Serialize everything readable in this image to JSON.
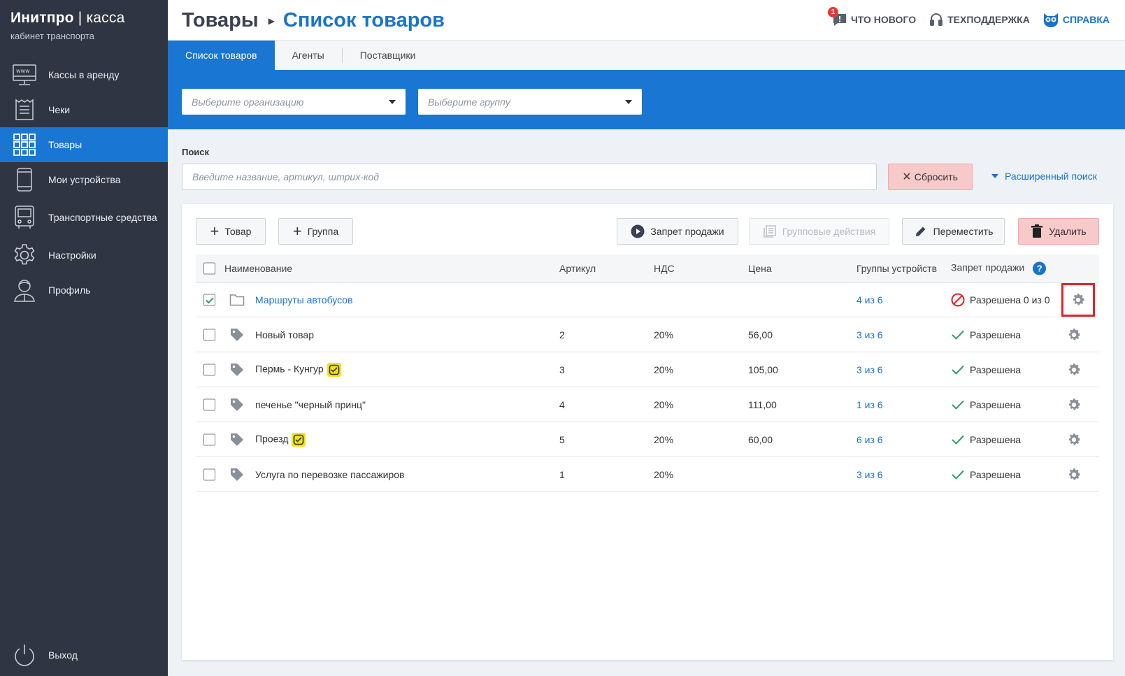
{
  "brand": {
    "title_bold": "Инитпро",
    "title_light": "| касса",
    "subtitle": "кабинет транспорта"
  },
  "sidebar": {
    "items": [
      {
        "label": "Кассы в аренду",
        "icon": "www-monitor-icon"
      },
      {
        "label": "Чеки",
        "icon": "receipt-icon"
      },
      {
        "label": "Товары",
        "icon": "grid-icon",
        "active": true
      },
      {
        "label": "Мои устройства",
        "icon": "phone-icon"
      },
      {
        "label": "Транспортные средства",
        "icon": "bus-icon"
      },
      {
        "label": "Настройки",
        "icon": "gear-icon"
      },
      {
        "label": "Профиль",
        "icon": "user-icon"
      }
    ],
    "logout": "Выход"
  },
  "header": {
    "crumb_parent": "Товары",
    "crumb_current": "Список товаров",
    "links": {
      "whats_new": "ЧТО НОВОГО",
      "whats_new_badge": "1",
      "support": "ТЕХПОДДЕРЖКА",
      "help": "СПРАВКА"
    }
  },
  "tabs": [
    "Список товаров",
    "Агенты",
    "Поставщики"
  ],
  "filters": {
    "org_placeholder": "Выберите организацию",
    "group_placeholder": "Выберите группу"
  },
  "search": {
    "label": "Поиск",
    "placeholder": "Введите название, артикул, штрих-код",
    "reset_label": "Сбросить",
    "advanced_label": "Расширенный поиск"
  },
  "toolbar": {
    "add_product": "Товар",
    "add_group": "Группа",
    "ban_sale": "Запрет продажи",
    "group_actions": "Групповые действия",
    "move": "Переместить",
    "delete": "Удалить"
  },
  "table": {
    "columns": {
      "name": "Наименование",
      "article": "Артикул",
      "vat": "НДС",
      "price": "Цена",
      "device_groups": "Группы устройств",
      "sale_ban": "Запрет продажи",
      "help": "?"
    },
    "rows": [
      {
        "type": "folder",
        "checked": true,
        "name": "Маршруты автобусов",
        "article": "",
        "vat": "",
        "price": "",
        "groups": "4 из 6",
        "status": "Разрешена 0 из 0",
        "status_kind": "partial",
        "badge": false,
        "highlight": true
      },
      {
        "type": "product",
        "checked": false,
        "name": "Новый товар",
        "article": "2",
        "vat": "20%",
        "price": "56,00",
        "groups": "3 из 6",
        "status": "Разрешена",
        "status_kind": "allowed",
        "badge": false
      },
      {
        "type": "product",
        "checked": false,
        "name": "Пермь - Кунгур",
        "article": "3",
        "vat": "20%",
        "price": "105,00",
        "groups": "3 из 6",
        "status": "Разрешена",
        "status_kind": "allowed",
        "badge": true
      },
      {
        "type": "product",
        "checked": false,
        "name": "печенье \"черный принц\"",
        "article": "4",
        "vat": "20%",
        "price": "111,00",
        "groups": "1 из 6",
        "status": "Разрешена",
        "status_kind": "allowed",
        "badge": false
      },
      {
        "type": "product",
        "checked": false,
        "name": "Проезд",
        "article": "5",
        "vat": "20%",
        "price": "60,00",
        "groups": "6 из 6",
        "status": "Разрешена",
        "status_kind": "allowed",
        "badge": true
      },
      {
        "type": "product",
        "checked": false,
        "name": "Услуга по перевозке пассажиров",
        "article": "1",
        "vat": "20%",
        "price": "",
        "groups": "3 из 6",
        "status": "Разрешена",
        "status_kind": "allowed",
        "badge": false
      }
    ]
  },
  "colors": {
    "sidebar_bg": "#2f3542",
    "accent": "#1976d2",
    "link": "#1a73c9",
    "danger_bg": "#f8c9c9",
    "ok_green": "#2e9c6a",
    "ban_red": "#e5202a",
    "badge_yellow": "#f2e21a"
  }
}
